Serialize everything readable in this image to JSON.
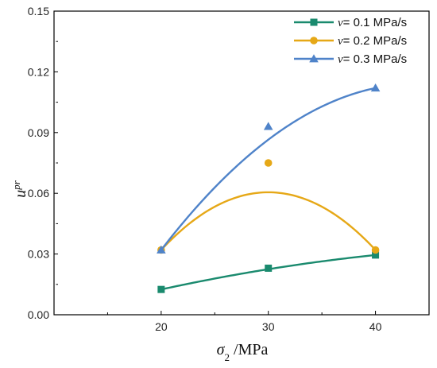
{
  "chart_data": {
    "type": "line",
    "x": [
      20,
      30,
      40
    ],
    "xlim": [
      10,
      45
    ],
    "ylim": [
      0,
      0.15
    ],
    "xticks": [
      "20",
      "30",
      "40"
    ],
    "yticks": [
      "0.00",
      "0.03",
      "0.06",
      "0.09",
      "0.12",
      "0.15"
    ],
    "ylabel": {
      "main": "u",
      "sup": "pr"
    },
    "xlabel": {
      "main": "σ",
      "sub": "2",
      "unit": " /MPa"
    },
    "legend_position": "top-right",
    "grid": false,
    "series": [
      {
        "name": "v= 0.1 MPa/s",
        "name_var": "v",
        "name_rest": "= 0.1 MPa/s",
        "color": "#1a8a6e",
        "marker": "square",
        "values": [
          0.0125,
          0.023,
          0.0295
        ],
        "fit": [
          0.0125,
          0.0225,
          0.0295
        ]
      },
      {
        "name": "v= 0.2 MPa/s",
        "name_var": "v",
        "name_rest": "= 0.2 MPa/s",
        "color": "#e6a817",
        "marker": "circle",
        "values": [
          0.032,
          0.075,
          0.032
        ],
        "fit": [
          0.032,
          0.0605,
          0.032
        ]
      },
      {
        "name": "v= 0.3 MPa/s",
        "name_var": "v",
        "name_rest": "= 0.3 MPa/s",
        "color": "#4f83c9",
        "marker": "triangle",
        "values": [
          0.032,
          0.093,
          0.112
        ],
        "fit": [
          0.032,
          0.0865,
          0.112
        ]
      }
    ]
  }
}
